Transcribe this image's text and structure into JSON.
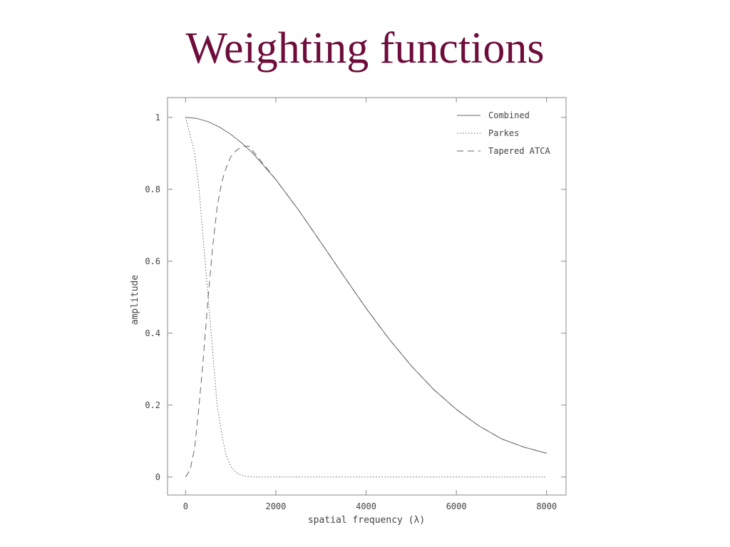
{
  "slide": {
    "title": "Weighting functions"
  },
  "chart_data": {
    "type": "line",
    "xlabel": "spatial frequency (λ)",
    "ylabel": "amplitude",
    "xlim": [
      -400,
      8430
    ],
    "ylim": [
      -0.05,
      1.055
    ],
    "xticks": [
      0,
      2000,
      4000,
      6000,
      8000
    ],
    "xtick_labels": [
      "0",
      "2000",
      "4000",
      "6000",
      "8000"
    ],
    "yticks": [
      0,
      0.2,
      0.4,
      0.6,
      0.8,
      1
    ],
    "ytick_labels": [
      "0",
      "0.2",
      "0.4",
      "0.6",
      "0.8",
      "1"
    ],
    "grid": false,
    "legend_position": "top-right",
    "series": [
      {
        "name": "Combined",
        "style": "solid",
        "x": [
          0,
          250,
          500,
          750,
          1000,
          1250,
          1500,
          2000,
          2500,
          3000,
          3500,
          4000,
          4500,
          5000,
          5500,
          6000,
          6500,
          7000,
          7500,
          8000
        ],
        "y": [
          1.0,
          0.997,
          0.988,
          0.973,
          0.953,
          0.928,
          0.899,
          0.827,
          0.743,
          0.652,
          0.56,
          0.469,
          0.385,
          0.309,
          0.243,
          0.188,
          0.142,
          0.106,
          0.083,
          0.066
        ]
      },
      {
        "name": "Parkes",
        "style": "dotted",
        "x": [
          0,
          100,
          200,
          300,
          400,
          500,
          600,
          700,
          800,
          900,
          1000,
          1100,
          1200,
          1300,
          1400,
          1500,
          2000,
          3000,
          4000,
          5000,
          6000,
          7000,
          8000
        ],
        "y": [
          1.0,
          0.95,
          0.9,
          0.8,
          0.65,
          0.5,
          0.35,
          0.2,
          0.12,
          0.06,
          0.03,
          0.015,
          0.007,
          0.003,
          0.001,
          0.0,
          0.0,
          0.0,
          0.0,
          0.0,
          0.0,
          0.0,
          0.0
        ]
      },
      {
        "name": "Tapered ATCA",
        "style": "dashed",
        "x": [
          0,
          100,
          200,
          300,
          400,
          500,
          600,
          700,
          800,
          900,
          1000,
          1100,
          1200,
          1300,
          1400,
          1500,
          2000,
          2500,
          3000,
          3500,
          4000,
          4500,
          5000,
          5500,
          6000,
          6500,
          7000,
          7500,
          8000
        ],
        "y": [
          0.0,
          0.02,
          0.08,
          0.2,
          0.34,
          0.5,
          0.64,
          0.75,
          0.82,
          0.86,
          0.89,
          0.905,
          0.915,
          0.92,
          0.92,
          0.905,
          0.827,
          0.743,
          0.652,
          0.56,
          0.469,
          0.385,
          0.309,
          0.243,
          0.188,
          0.142,
          0.106,
          0.083,
          0.066
        ]
      }
    ],
    "colors": {
      "line": "#666666",
      "frame": "#888888",
      "text": "#444444"
    }
  }
}
